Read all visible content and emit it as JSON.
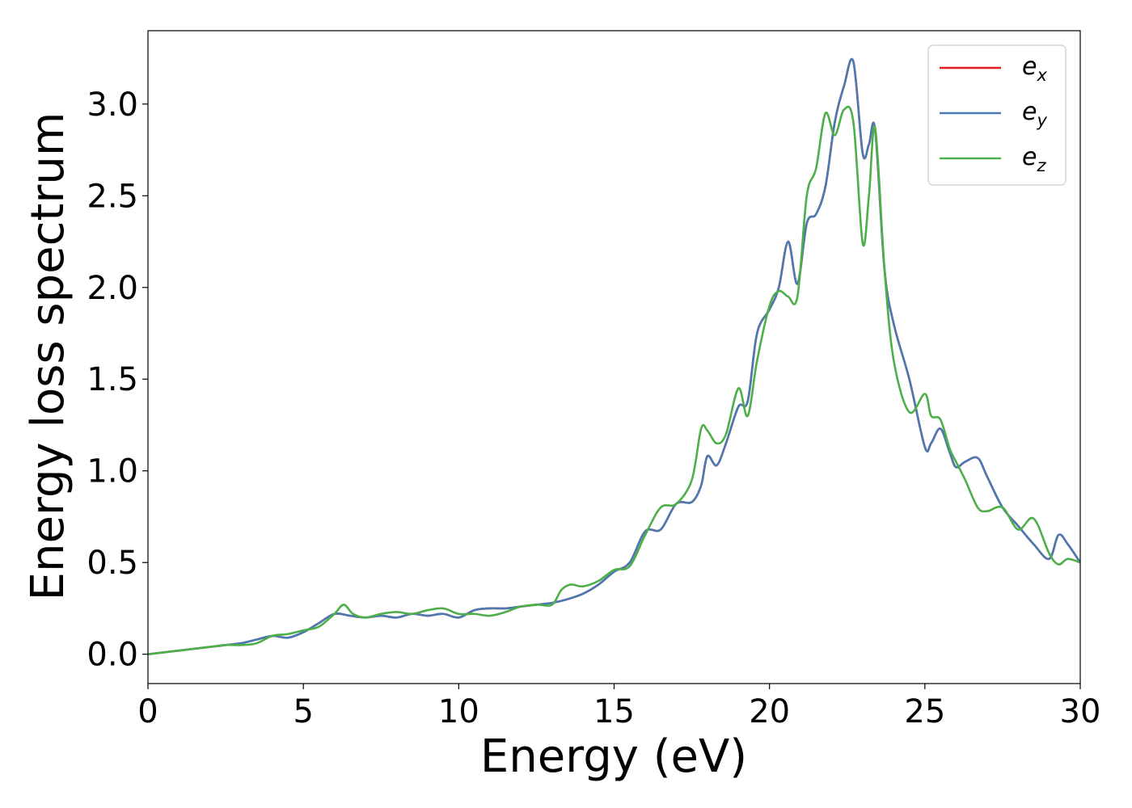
{
  "chart_data": {
    "type": "line",
    "title": "",
    "xlabel": "Energy (eV)",
    "ylabel": "Energy loss spectrum",
    "xlim": [
      0,
      30
    ],
    "ylim": [
      -0.16,
      3.4
    ],
    "xticks": [
      "0",
      "5",
      "10",
      "15",
      "20",
      "25",
      "30"
    ],
    "yticks": [
      "0.0",
      "0.5",
      "1.0",
      "1.5",
      "2.0",
      "2.5",
      "3.0"
    ],
    "grid": false,
    "legend_position": "top-right",
    "series": [
      {
        "name": "e_x",
        "legend_main": "e",
        "legend_sub": "x",
        "color": "#e41a1c",
        "x": [
          0,
          0.5,
          1,
          1.5,
          2,
          2.5,
          3,
          3.5,
          4,
          4.5,
          5,
          5.5,
          6,
          6.5,
          7,
          7.5,
          8,
          8.5,
          9,
          9.5,
          10,
          10.5,
          11,
          11.5,
          12,
          12.5,
          13,
          13.5,
          14,
          14.5,
          15,
          15.5,
          16,
          16.5,
          17,
          17.5,
          17.8,
          18,
          18.3,
          18.6,
          19,
          19.3,
          19.6,
          20,
          20.3,
          20.6,
          20.9,
          21.2,
          21.5,
          21.8,
          22.1,
          22.4,
          22.7,
          23,
          23.2,
          23.4,
          23.7,
          24,
          24.5,
          25,
          25.2,
          25.5,
          25.8,
          26,
          26.3,
          26.7,
          27,
          27.5,
          28,
          28.5,
          29,
          29.3,
          29.6,
          30
        ],
        "values": [
          0.0,
          0.01,
          0.02,
          0.03,
          0.04,
          0.05,
          0.06,
          0.08,
          0.1,
          0.09,
          0.12,
          0.17,
          0.22,
          0.21,
          0.2,
          0.21,
          0.2,
          0.22,
          0.21,
          0.22,
          0.2,
          0.24,
          0.25,
          0.25,
          0.26,
          0.27,
          0.28,
          0.3,
          0.33,
          0.38,
          0.45,
          0.5,
          0.67,
          0.68,
          0.82,
          0.83,
          0.92,
          1.08,
          1.03,
          1.15,
          1.35,
          1.38,
          1.75,
          1.88,
          2.0,
          2.25,
          2.02,
          2.35,
          2.4,
          2.55,
          2.9,
          3.1,
          3.23,
          2.73,
          2.78,
          2.86,
          2.1,
          1.8,
          1.5,
          1.13,
          1.15,
          1.23,
          1.1,
          1.02,
          1.05,
          1.07,
          0.97,
          0.8,
          0.7,
          0.6,
          0.52,
          0.65,
          0.6,
          0.5
        ]
      },
      {
        "name": "e_y",
        "legend_main": "e",
        "legend_sub": "y",
        "color": "#4a79b3",
        "x": [
          0,
          0.5,
          1,
          1.5,
          2,
          2.5,
          3,
          3.5,
          4,
          4.5,
          5,
          5.5,
          6,
          6.5,
          7,
          7.5,
          8,
          8.5,
          9,
          9.5,
          10,
          10.5,
          11,
          11.5,
          12,
          12.5,
          13,
          13.5,
          14,
          14.5,
          15,
          15.5,
          16,
          16.5,
          17,
          17.5,
          17.8,
          18,
          18.3,
          18.6,
          19,
          19.3,
          19.6,
          20,
          20.3,
          20.6,
          20.9,
          21.2,
          21.5,
          21.8,
          22.1,
          22.4,
          22.7,
          23,
          23.2,
          23.4,
          23.7,
          24,
          24.5,
          25,
          25.2,
          25.5,
          25.8,
          26,
          26.3,
          26.7,
          27,
          27.5,
          28,
          28.5,
          29,
          29.3,
          29.6,
          30
        ],
        "values": [
          0.0,
          0.01,
          0.02,
          0.03,
          0.04,
          0.05,
          0.06,
          0.08,
          0.1,
          0.09,
          0.12,
          0.17,
          0.22,
          0.21,
          0.2,
          0.21,
          0.2,
          0.22,
          0.21,
          0.22,
          0.2,
          0.24,
          0.25,
          0.25,
          0.26,
          0.27,
          0.28,
          0.3,
          0.33,
          0.38,
          0.45,
          0.5,
          0.67,
          0.68,
          0.82,
          0.83,
          0.92,
          1.08,
          1.03,
          1.15,
          1.35,
          1.38,
          1.75,
          1.88,
          2.0,
          2.25,
          2.02,
          2.35,
          2.4,
          2.55,
          2.9,
          3.1,
          3.23,
          2.73,
          2.78,
          2.86,
          2.1,
          1.8,
          1.5,
          1.13,
          1.15,
          1.23,
          1.1,
          1.02,
          1.05,
          1.07,
          0.97,
          0.8,
          0.7,
          0.6,
          0.52,
          0.65,
          0.6,
          0.5
        ]
      },
      {
        "name": "e_z",
        "legend_main": "e",
        "legend_sub": "z",
        "color": "#4daf4a",
        "x": [
          0,
          0.5,
          1,
          1.5,
          2,
          2.5,
          3,
          3.5,
          4,
          4.5,
          5,
          5.5,
          6,
          6.3,
          6.6,
          7,
          7.5,
          8,
          8.5,
          9,
          9.5,
          10,
          10.5,
          11,
          11.5,
          12,
          12.5,
          13,
          13.3,
          13.6,
          14,
          14.5,
          15,
          15.5,
          16,
          16.5,
          17,
          17.5,
          17.8,
          18,
          18.3,
          18.6,
          19,
          19.3,
          19.6,
          20,
          20.3,
          20.6,
          20.9,
          21.2,
          21.5,
          21.8,
          22.1,
          22.4,
          22.7,
          23,
          23.2,
          23.4,
          23.7,
          24,
          24.5,
          25,
          25.2,
          25.5,
          25.8,
          26,
          26.3,
          26.7,
          27,
          27.5,
          28,
          28.5,
          29,
          29.3,
          29.6,
          30
        ],
        "values": [
          0.0,
          0.01,
          0.02,
          0.03,
          0.04,
          0.05,
          0.05,
          0.06,
          0.1,
          0.11,
          0.13,
          0.15,
          0.22,
          0.27,
          0.22,
          0.2,
          0.22,
          0.23,
          0.22,
          0.24,
          0.25,
          0.22,
          0.22,
          0.21,
          0.23,
          0.26,
          0.27,
          0.27,
          0.35,
          0.38,
          0.37,
          0.4,
          0.46,
          0.48,
          0.65,
          0.8,
          0.82,
          0.95,
          1.23,
          1.22,
          1.15,
          1.2,
          1.45,
          1.3,
          1.6,
          1.9,
          1.98,
          1.95,
          1.95,
          2.5,
          2.65,
          2.95,
          2.83,
          2.97,
          2.9,
          2.24,
          2.5,
          2.87,
          2.1,
          1.6,
          1.32,
          1.42,
          1.3,
          1.28,
          1.12,
          1.05,
          0.95,
          0.8,
          0.78,
          0.8,
          0.68,
          0.74,
          0.55,
          0.49,
          0.52,
          0.5
        ]
      }
    ]
  }
}
